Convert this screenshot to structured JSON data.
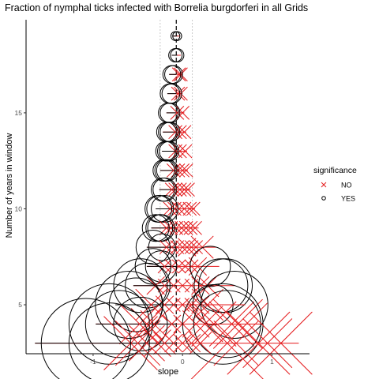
{
  "chart_data": {
    "type": "scatter",
    "title": "Fraction of nymphal ticks infected with Borrelia burgdorferi in all Grids",
    "xlabel": "slope",
    "ylabel": "Number of years in window",
    "xlim": [
      -1.75,
      1.42
    ],
    "ylim": [
      2.45,
      19.85
    ],
    "xticks": [
      -1,
      0,
      1
    ],
    "yticks": [
      5,
      10,
      15
    ],
    "grid": false,
    "reference_lines": {
      "dashed_black_x": -0.07,
      "dotted_gray_x": [
        -0.25,
        0.11
      ]
    },
    "legend": {
      "title": "significance",
      "placement": "right",
      "entries": [
        {
          "label": "NO",
          "marker": "x",
          "color": "#e41a1c"
        },
        {
          "label": "YES",
          "marker": "circle-open",
          "color": "#000000"
        }
      ]
    },
    "colors": {
      "NO": "#e41a1c",
      "YES": "#000000"
    },
    "rows": [
      {
        "y": 19,
        "lo": -0.11,
        "hi": -0.03,
        "yes": [
          [
            -0.08,
            0.1
          ],
          [
            -0.06,
            0.1
          ]
        ],
        "no": []
      },
      {
        "y": 18,
        "lo": -0.12,
        "hi": -0.02,
        "yes": [
          [
            -0.08,
            0.15
          ],
          [
            -0.06,
            0.15
          ]
        ],
        "no": []
      },
      {
        "y": 17,
        "lo": -0.15,
        "hi": 0.0,
        "yes": [
          [
            -0.12,
            0.2
          ],
          [
            -0.1,
            0.2
          ]
        ],
        "no": [
          [
            -0.04,
            0.15
          ],
          [
            -0.02,
            0.15
          ]
        ]
      },
      {
        "y": 16,
        "lo": -0.17,
        "hi": 0.0,
        "yes": [
          [
            -0.14,
            0.22
          ],
          [
            -0.12,
            0.22
          ]
        ],
        "no": [
          [
            -0.05,
            0.15
          ],
          [
            -0.02,
            0.15
          ]
        ]
      },
      {
        "y": 15,
        "lo": -0.18,
        "hi": 0.02,
        "yes": [
          [
            -0.16,
            0.22
          ],
          [
            -0.14,
            0.22
          ]
        ],
        "no": [
          [
            -0.06,
            0.15
          ],
          [
            0.0,
            0.15
          ]
        ]
      },
      {
        "y": 14,
        "lo": -0.22,
        "hi": 0.04,
        "yes": [
          [
            -0.18,
            0.22
          ],
          [
            -0.16,
            0.22
          ],
          [
            -0.14,
            0.22
          ]
        ],
        "no": [
          [
            -0.08,
            0.15
          ],
          [
            -0.03,
            0.15
          ],
          [
            0.02,
            0.15
          ]
        ]
      },
      {
        "y": 13,
        "lo": -0.23,
        "hi": 0.05,
        "yes": [
          [
            -0.19,
            0.22
          ],
          [
            -0.17,
            0.22
          ],
          [
            -0.15,
            0.22
          ]
        ],
        "no": [
          [
            -0.08,
            0.15
          ],
          [
            -0.03,
            0.15
          ],
          [
            0.03,
            0.15
          ]
        ]
      },
      {
        "y": 12,
        "lo": -0.25,
        "hi": 0.06,
        "yes": [
          [
            -0.21,
            0.24
          ],
          [
            -0.19,
            0.24
          ],
          [
            -0.17,
            0.24
          ]
        ],
        "no": [
          [
            -0.1,
            0.15
          ],
          [
            -0.05,
            0.15
          ],
          [
            0.0,
            0.15
          ],
          [
            0.04,
            0.15
          ]
        ]
      },
      {
        "y": 11,
        "lo": -0.26,
        "hi": 0.09,
        "yes": [
          [
            -0.22,
            0.26
          ],
          [
            -0.2,
            0.26
          ]
        ],
        "no": [
          [
            -0.12,
            0.15
          ],
          [
            -0.08,
            0.15
          ],
          [
            -0.03,
            0.15
          ],
          [
            0.02,
            0.15
          ],
          [
            0.06,
            0.15
          ]
        ]
      },
      {
        "y": 10,
        "lo": -0.3,
        "hi": 0.14,
        "yes": [
          [
            -0.27,
            0.3
          ],
          [
            -0.25,
            0.3
          ],
          [
            -0.2,
            0.3
          ]
        ],
        "no": [
          [
            -0.14,
            0.15
          ],
          [
            -0.09,
            0.15
          ],
          [
            -0.04,
            0.15
          ],
          [
            0.02,
            0.15
          ],
          [
            0.08,
            0.15
          ],
          [
            0.12,
            0.15
          ]
        ]
      },
      {
        "y": 9,
        "lo": -0.35,
        "hi": 0.18,
        "yes": [
          [
            -0.3,
            0.3
          ],
          [
            -0.26,
            0.3
          ],
          [
            -0.24,
            0.3
          ]
        ],
        "no": [
          [
            -0.18,
            0.15
          ],
          [
            -0.13,
            0.15
          ],
          [
            -0.07,
            0.15
          ],
          [
            -0.01,
            0.15
          ],
          [
            0.04,
            0.15
          ],
          [
            0.09,
            0.15
          ],
          [
            0.14,
            0.15
          ]
        ]
      },
      {
        "y": 8,
        "lo": -0.4,
        "hi": 0.38,
        "yes": [
          [
            -0.33,
            0.38
          ],
          [
            -0.23,
            0.3
          ]
        ],
        "no": [
          [
            -0.18,
            0.15
          ],
          [
            -0.12,
            0.15
          ],
          [
            -0.06,
            0.15
          ],
          [
            0.0,
            0.15
          ],
          [
            0.05,
            0.2
          ],
          [
            0.1,
            0.15
          ],
          [
            0.15,
            0.15
          ],
          [
            0.22,
            0.25
          ]
        ]
      },
      {
        "y": 7,
        "lo": -0.4,
        "hi": 0.41,
        "yes": [
          [
            -0.33,
            0.4
          ],
          [
            -0.24,
            0.35
          ],
          [
            0.31,
            0.45
          ]
        ],
        "no": [
          [
            -0.2,
            0.15
          ],
          [
            -0.12,
            0.15
          ],
          [
            -0.04,
            0.15
          ],
          [
            0.03,
            0.15
          ],
          [
            0.1,
            0.15
          ],
          [
            0.17,
            0.2
          ]
        ]
      },
      {
        "y": 6,
        "lo": -0.55,
        "hi": 0.58,
        "yes": [
          [
            -0.47,
            0.6
          ],
          [
            -0.39,
            0.5
          ],
          [
            0.43,
            0.6
          ],
          [
            0.48,
            0.6
          ]
        ],
        "no": [
          [
            -0.3,
            0.2
          ],
          [
            -0.2,
            0.15
          ],
          [
            -0.1,
            0.15
          ],
          [
            0.0,
            0.15
          ],
          [
            0.1,
            0.15
          ],
          [
            0.2,
            0.2
          ],
          [
            0.28,
            0.25
          ]
        ]
      },
      {
        "y": 5,
        "lo": -0.75,
        "hi": 0.7,
        "yes": [
          [
            -0.6,
            0.75
          ],
          [
            -0.52,
            0.6
          ],
          [
            0.34,
            0.45
          ],
          [
            0.58,
            0.75
          ]
        ],
        "no": [
          [
            -0.35,
            0.35
          ],
          [
            -0.2,
            0.2
          ],
          [
            -0.1,
            0.15
          ],
          [
            0.0,
            0.15
          ],
          [
            0.1,
            0.15
          ],
          [
            0.2,
            0.2
          ],
          [
            0.28,
            0.35
          ]
        ]
      },
      {
        "y": 4,
        "lo": -0.97,
        "hi": 0.9,
        "yes": [
          [
            -0.82,
            0.9
          ],
          [
            -0.71,
            0.75
          ],
          [
            -0.47,
            0.6
          ],
          [
            0.45,
            0.9
          ],
          [
            0.5,
            0.75
          ]
        ],
        "no": [
          [
            -0.48,
            0.45
          ],
          [
            -0.4,
            0.35
          ],
          [
            -0.32,
            0.3
          ],
          [
            -0.12,
            0.2
          ],
          [
            0.0,
            0.2
          ],
          [
            0.15,
            0.3
          ],
          [
            0.25,
            0.4
          ],
          [
            0.35,
            0.5
          ],
          [
            0.55,
            0.5
          ],
          [
            0.62,
            0.55
          ]
        ]
      },
      {
        "y": 3,
        "lo": -1.65,
        "hi": 1.3,
        "yes": [
          [
            -1.08,
            1.0
          ],
          [
            -0.82,
            0.9
          ]
        ],
        "no": [
          [
            -0.58,
            0.6
          ],
          [
            -0.5,
            0.5
          ],
          [
            -0.4,
            0.4
          ],
          [
            -0.28,
            0.3
          ],
          [
            -0.2,
            0.25
          ],
          [
            -0.1,
            0.2
          ],
          [
            0.0,
            0.2
          ],
          [
            0.1,
            0.2
          ],
          [
            0.2,
            0.25
          ],
          [
            0.5,
            0.9
          ],
          [
            0.6,
            0.5
          ],
          [
            0.85,
            0.7
          ],
          [
            0.95,
            0.55
          ],
          [
            1.1,
            0.7
          ]
        ]
      }
    ]
  }
}
